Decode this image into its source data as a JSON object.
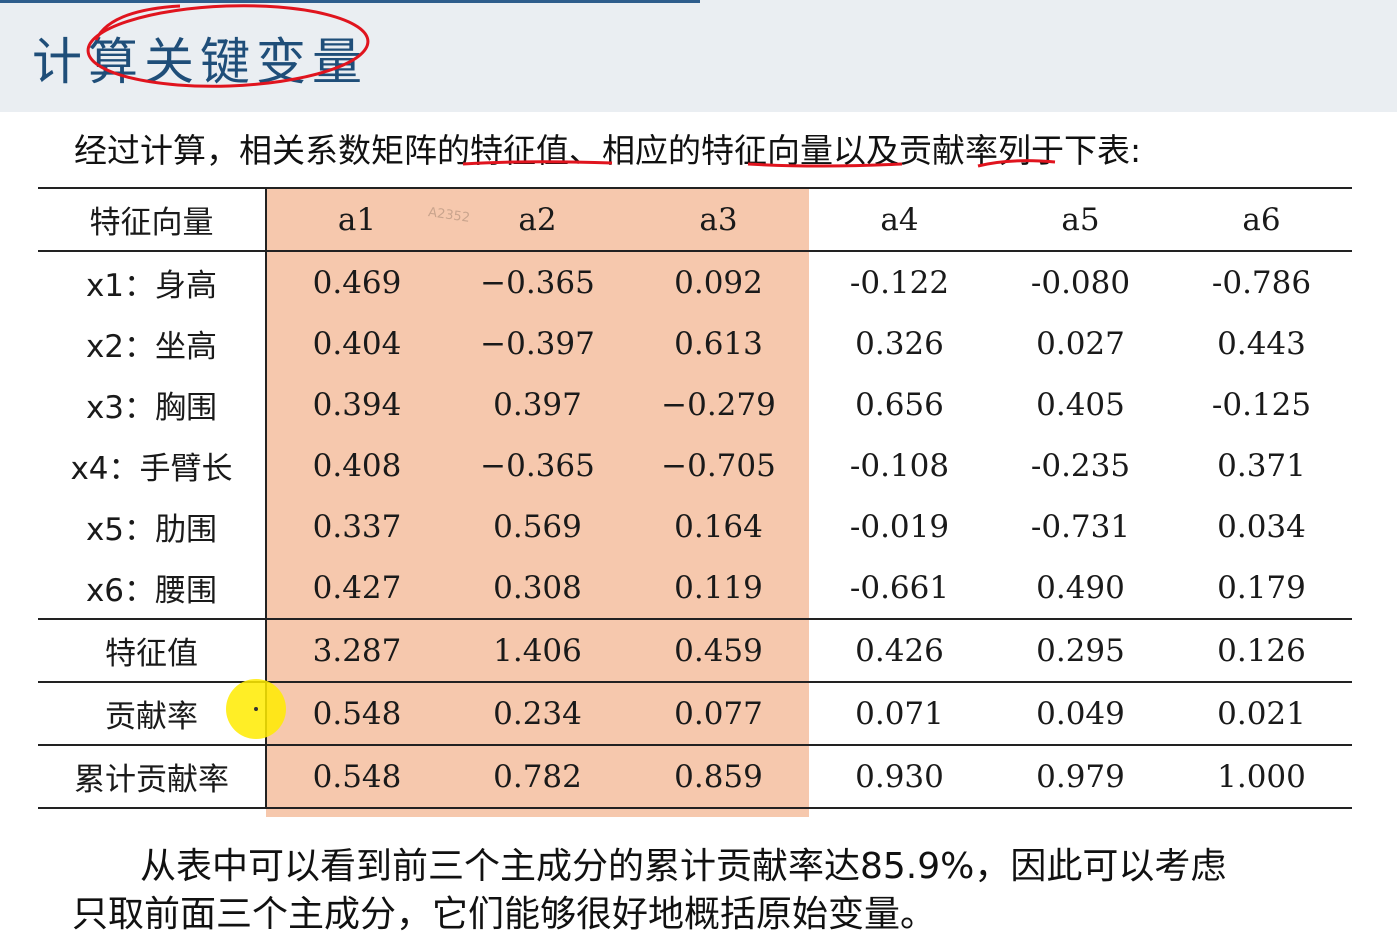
{
  "header": {
    "title": "计算关键变量"
  },
  "intro": "经过计算，相关系数矩阵的特征值、相应的特征向量以及贡献率列于下表:",
  "watermark": "A2352",
  "table": {
    "corner": "特征向量",
    "columns": [
      "a1",
      "a2",
      "a3",
      "a4",
      "a5",
      "a6"
    ],
    "rows": [
      {
        "label": "x1：身高",
        "values": [
          "0.469",
          "−0.365",
          "0.092",
          "-0.122",
          "-0.080",
          "-0.786"
        ]
      },
      {
        "label": "x2：坐高",
        "values": [
          "0.404",
          "−0.397",
          "0.613",
          "0.326",
          "0.027",
          "0.443"
        ]
      },
      {
        "label": "x3：胸围",
        "values": [
          "0.394",
          "0.397",
          "−0.279",
          "0.656",
          "0.405",
          "-0.125"
        ]
      },
      {
        "label": "x4：手臂长",
        "values": [
          "0.408",
          "−0.365",
          "−0.705",
          "-0.108",
          "-0.235",
          "0.371"
        ]
      },
      {
        "label": "x5：肋围",
        "values": [
          "0.337",
          "0.569",
          "0.164",
          "-0.019",
          "-0.731",
          "0.034"
        ]
      },
      {
        "label": "x6：腰围",
        "values": [
          "0.427",
          "0.308",
          "0.119",
          "-0.661",
          "0.490",
          "0.179"
        ]
      }
    ],
    "eigenvalue": {
      "label": "特征值",
      "values": [
        "3.287",
        "1.406",
        "0.459",
        "0.426",
        "0.295",
        "0.126"
      ]
    },
    "contribution": {
      "label": "贡献率",
      "values": [
        "0.548",
        "0.234",
        "0.077",
        "0.071",
        "0.049",
        "0.021"
      ]
    },
    "cumulative": {
      "label": "累计贡献率",
      "values": [
        "0.548",
        "0.782",
        "0.859",
        "0.930",
        "0.979",
        "1.000"
      ]
    },
    "highlight_color": "#f6c8ad"
  },
  "conclusion": {
    "line1": "从表中可以看到前三个主成分的累计贡献率达85.9%，因此可以考虑",
    "line2": "只取前面三个主成分，它们能够很好地概括原始变量。"
  },
  "colors": {
    "title": "#1f4e79",
    "annotation": "#e0141e",
    "cursor": "#ffeb00"
  }
}
